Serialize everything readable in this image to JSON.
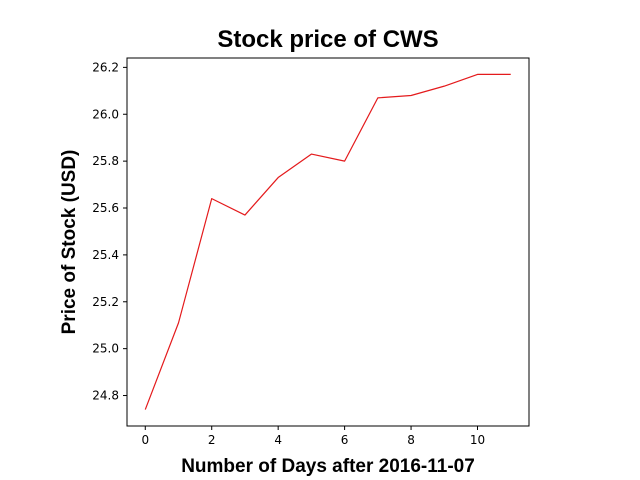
{
  "chart_data": {
    "type": "line",
    "title": "Stock price of CWS",
    "xlabel": "Number of Days after 2016-11-07",
    "ylabel": "Price of Stock (USD)",
    "x": [
      0,
      1,
      2,
      3,
      4,
      5,
      6,
      7,
      8,
      9,
      10,
      11
    ],
    "series": [
      {
        "values": [
          24.74,
          25.11,
          25.64,
          25.57,
          25.73,
          25.83,
          25.8,
          26.07,
          26.08,
          26.12,
          26.17,
          26.17
        ],
        "color": "#e41a1c"
      }
    ],
    "xlim": [
      -0.55,
      11.55
    ],
    "ylim": [
      24.67,
      26.24
    ],
    "xticks": [
      0,
      2,
      4,
      6,
      8,
      10
    ],
    "xtick_labels": [
      "0",
      "2",
      "4",
      "6",
      "8",
      "10"
    ],
    "yticks": [
      24.8,
      25.0,
      25.2,
      25.4,
      25.6,
      25.8,
      26.0,
      26.2
    ],
    "ytick_labels": [
      "24.8",
      "25.0",
      "25.2",
      "25.4",
      "25.6",
      "25.8",
      "26.0",
      "26.2"
    ],
    "grid": false,
    "legend": "none"
  }
}
